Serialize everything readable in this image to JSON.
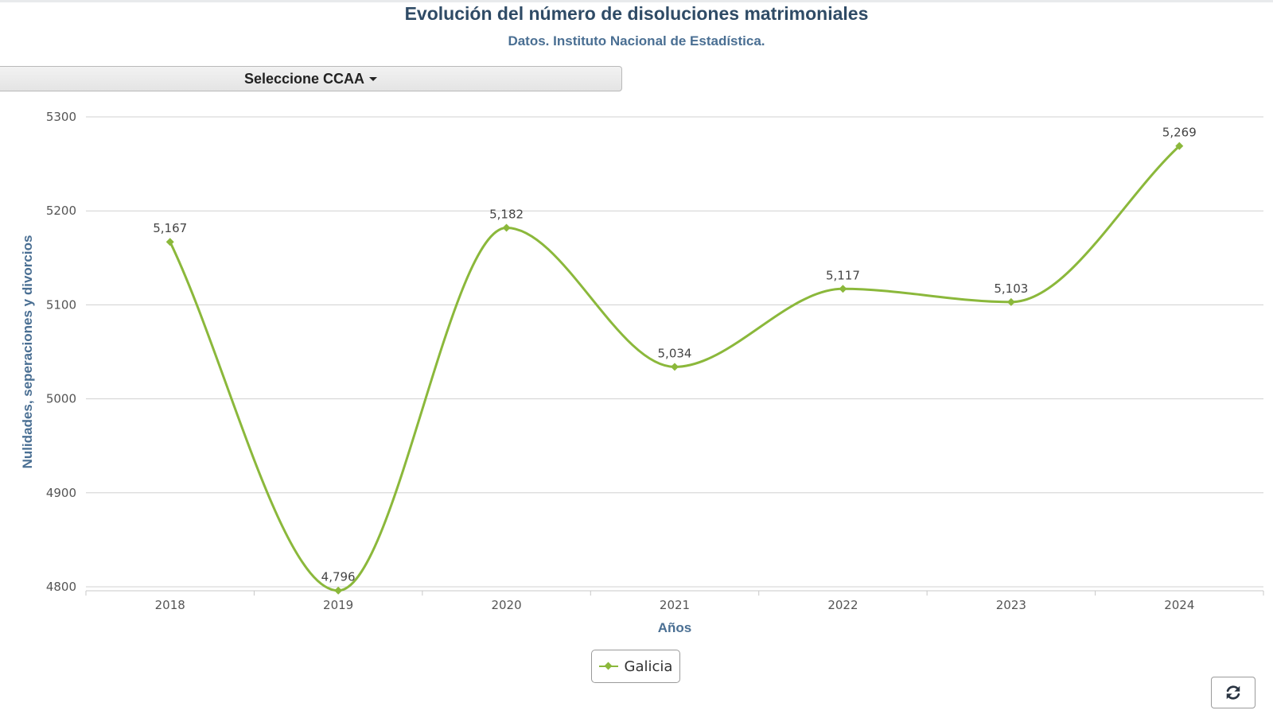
{
  "header": {
    "title": "Evolución del número de disoluciones matrimoniales",
    "subtitle": "Datos. Instituto Nacional de Estadística."
  },
  "controls": {
    "ccaa_label": "Seleccione CCAA",
    "refresh_icon": "refresh-icon"
  },
  "colors": {
    "series": "#8bb83b",
    "title": "#2f4b66",
    "axis_title": "#4a6f93",
    "grid": "#d0d0d0"
  },
  "chart_data": {
    "type": "line",
    "smooth": true,
    "title": "Evolución del número de disoluciones matrimoniales",
    "subtitle": "Datos. Instituto Nacional de Estadística.",
    "xlabel": "Años",
    "ylabel": "Nulidades, seperaciones y divorcios",
    "categories": [
      "2018",
      "2019",
      "2020",
      "2021",
      "2022",
      "2023",
      "2024"
    ],
    "yticks": [
      4800,
      4900,
      5000,
      5100,
      5200,
      5300
    ],
    "ylim": [
      4800,
      5300
    ],
    "grid": true,
    "legend_position": "bottom-center",
    "series": [
      {
        "name": "Galicia",
        "values": [
          5167,
          4796,
          5182,
          5034,
          5117,
          5103,
          5269
        ],
        "labels": [
          "5,167",
          "4,796",
          "5,182",
          "5,034",
          "5,117",
          "5,103",
          "5,269"
        ]
      }
    ]
  }
}
